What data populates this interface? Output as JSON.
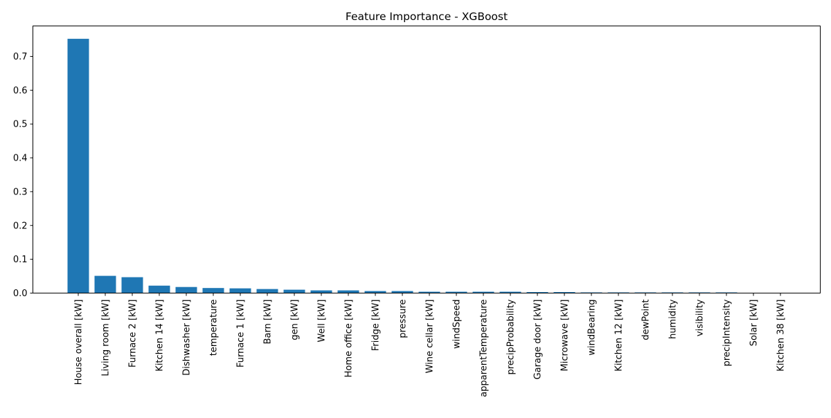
{
  "chart_data": {
    "type": "bar",
    "title": "Feature Importance - XGBoost",
    "xlabel": "",
    "ylabel": "",
    "ylim": [
      0,
      0.79
    ],
    "yticks": [
      "0.0",
      "0.1",
      "0.2",
      "0.3",
      "0.4",
      "0.5",
      "0.6",
      "0.7"
    ],
    "bar_color": "#1f77b4",
    "grid": false,
    "categories": [
      "House overall [kW]",
      "Living room [kW]",
      "Furnace 2 [kW]",
      "Kitchen 14 [kW]",
      "Dishwasher [kW]",
      "temperature",
      "Furnace 1 [kW]",
      "Barn [kW]",
      "gen [kW]",
      "Well [kW]",
      "Home office [kW]",
      "Fridge [kW]",
      "pressure",
      "Wine cellar [kW]",
      "windSpeed",
      "apparentTemperature",
      "precipProbability",
      "Garage door [kW]",
      "Microwave [kW]",
      "windBearing",
      "Kitchen 12 [kW]",
      "dewPoint",
      "humidity",
      "visibility",
      "precipIntensity",
      "Solar [kW]",
      "Kitchen 38 [kW]"
    ],
    "values": [
      0.752,
      0.051,
      0.047,
      0.022,
      0.018,
      0.015,
      0.014,
      0.012,
      0.01,
      0.008,
      0.008,
      0.006,
      0.006,
      0.004,
      0.004,
      0.004,
      0.004,
      0.003,
      0.003,
      0.002,
      0.002,
      0.002,
      0.002,
      0.002,
      0.002,
      0.0,
      0.0
    ]
  }
}
